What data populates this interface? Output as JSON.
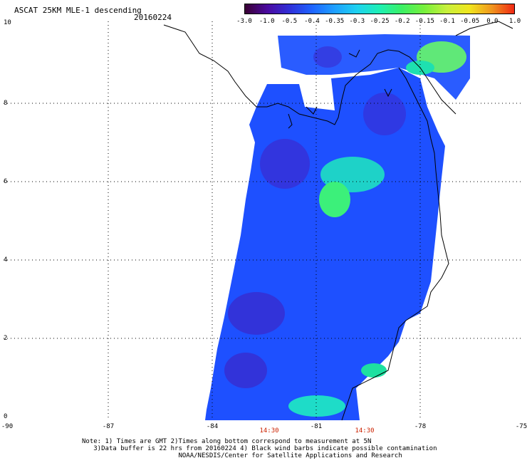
{
  "header": {
    "title": "ASCAT 25KM MLE-1 descending",
    "date": "20160224"
  },
  "colorbar": {
    "labels": [
      "-3.0",
      "-1.0",
      "-0.5",
      "-0.4",
      "-0.35",
      "-0.3",
      "-0.25",
      "-0.2",
      "-0.15",
      "-0.1",
      "-0.05",
      "0.0",
      "1.0"
    ],
    "colors": [
      "#3a0033",
      "#4a0aa0",
      "#3030d8",
      "#1e64ff",
      "#1ea0ff",
      "#1ed2f0",
      "#1ef0b4",
      "#3cf064",
      "#78f03c",
      "#c8f03c",
      "#f0e61e",
      "#f0961e",
      "#f02814"
    ]
  },
  "axes": {
    "y_labels": [
      "10",
      "8",
      "6",
      "4",
      "2",
      "0"
    ],
    "x_labels": [
      "-90",
      "-87",
      "-84",
      "-81",
      "-78",
      "-75"
    ],
    "time_labels": [
      "14:30",
      "14:30"
    ]
  },
  "notes": {
    "line1": "Note: 1) Times are GMT 2)Times along bottom correspond to measurement at 5N",
    "line2": "3)Data buffer is 22 hrs from 20160224 4) Black wind barbs indicate possible contamination",
    "line3": "NOAA/NESDIS/Center for Satellite Applications and Research"
  },
  "map": {
    "lon_range": [
      -90,
      -75
    ],
    "lat_range": [
      0,
      10
    ],
    "grid": "dotted",
    "swath_fill": "#1e50ff"
  }
}
